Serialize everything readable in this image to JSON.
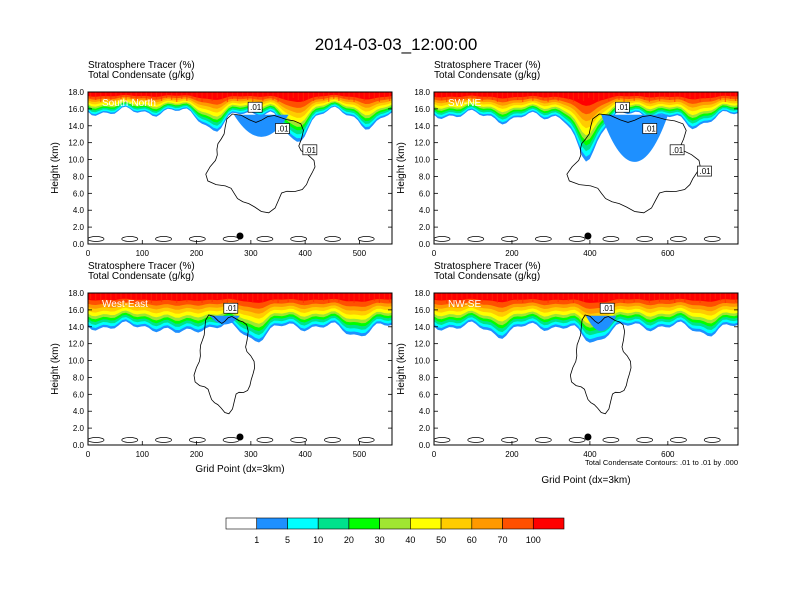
{
  "title": "2014-03-03_12:00:00",
  "colors": {
    "levels": [
      "#ffffff",
      "#1e90ff",
      "#00ffff",
      "#00e28c",
      "#00ff00",
      "#a0e632",
      "#ffff00",
      "#ffcc00",
      "#ff9900",
      "#ff5000",
      "#ff0000"
    ],
    "contour": "#000000"
  },
  "colorbar": {
    "labels": [
      "1",
      "5",
      "10",
      "20",
      "30",
      "40",
      "50",
      "60",
      "70",
      "100"
    ]
  },
  "chart_data": [
    {
      "type": "heatmap",
      "panel": "South-North",
      "title_lines": [
        "Stratosphere Tracer   (%)",
        "Total Condensate   (g/kg)"
      ],
      "xlabel": "",
      "ylabel": "Height (km)",
      "xlim": [
        0,
        560
      ],
      "ylim": [
        0,
        18
      ],
      "xticks": [
        "0",
        "100",
        "200",
        "300",
        "400",
        "500"
      ],
      "yticks": [
        "0.0",
        "2.0",
        "4.0",
        "6.0",
        "8.0",
        "10.0",
        "12.0",
        "14.0",
        "16.0",
        "18.0"
      ],
      "contour_labels": [
        ".01",
        ".01",
        ".01"
      ],
      "marker_x": 280
    },
    {
      "type": "heatmap",
      "panel": "SW-NE",
      "title_lines": [
        "Stratosphere Tracer   (%)",
        "Total Condensate   (g/kg)"
      ],
      "xlabel": "",
      "ylabel": "Height (km)",
      "xlim": [
        0,
        780
      ],
      "ylim": [
        0,
        18
      ],
      "xticks": [
        "0",
        "200",
        "400",
        "600"
      ],
      "yticks": [
        "0.0",
        "2.0",
        "4.0",
        "6.0",
        "8.0",
        "10.0",
        "12.0",
        "14.0",
        "16.0",
        "18.0"
      ],
      "contour_labels": [
        ".01",
        ".01",
        ".01",
        ".01"
      ],
      "marker_x": 395
    },
    {
      "type": "heatmap",
      "panel": "West-East",
      "title_lines": [
        "Stratosphere Tracer   (%)",
        "Total Condensate   (g/kg)"
      ],
      "xlabel": "Grid Point (dx=3km)",
      "ylabel": "Height (km)",
      "xlim": [
        0,
        560
      ],
      "ylim": [
        0,
        18
      ],
      "xticks": [
        "0",
        "100",
        "200",
        "300",
        "400",
        "500"
      ],
      "yticks": [
        "0.0",
        "2.0",
        "4.0",
        "6.0",
        "8.0",
        "10.0",
        "12.0",
        "14.0",
        "16.0",
        "18.0"
      ],
      "contour_labels": [
        ".01"
      ],
      "marker_x": 280
    },
    {
      "type": "heatmap",
      "panel": "NW-SE",
      "title_lines": [
        "Stratosphere Tracer   (%)",
        "Total Condensate   (g/kg)"
      ],
      "xlabel": "Grid Point (dx=3km)",
      "ylabel": "Height (km)",
      "xlim": [
        0,
        780
      ],
      "ylim": [
        0,
        18
      ],
      "xticks": [
        "0",
        "200",
        "400",
        "600"
      ],
      "yticks": [
        "0.0",
        "2.0",
        "4.0",
        "6.0",
        "8.0",
        "10.0",
        "12.0",
        "14.0",
        "16.0",
        "18.0"
      ],
      "contour_labels": [
        ".01"
      ],
      "marker_x": 395,
      "footnote": "Total Condensate Contours: .01 to .01 by .000"
    }
  ]
}
